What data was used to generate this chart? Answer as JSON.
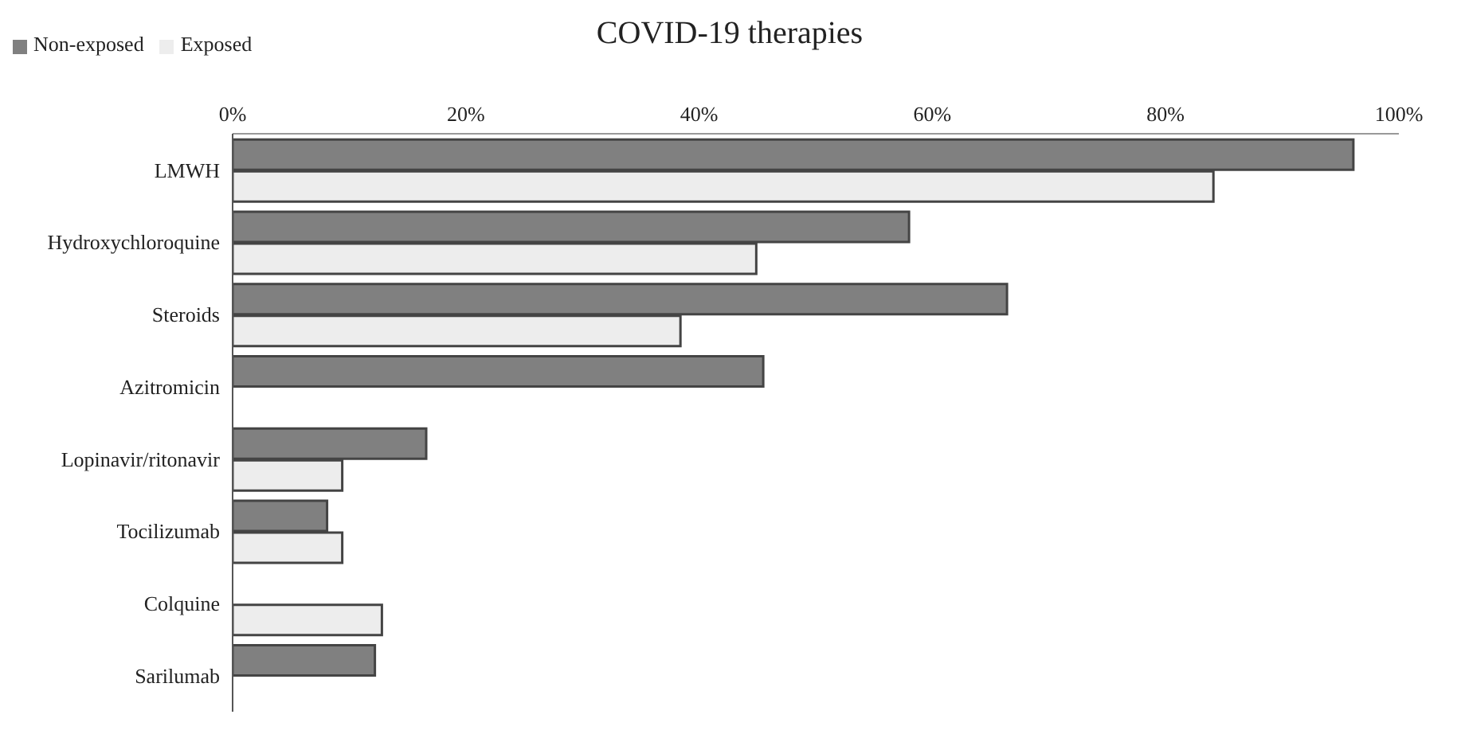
{
  "chart_data": {
    "type": "bar",
    "orientation": "horizontal",
    "title": "COVID-19 therapies",
    "categories": [
      "LMWH",
      "Hydroxychloroquine",
      "Steroids",
      "Azitromicin",
      "Lopinavir/ritonavir",
      "Tocilizumab",
      "Colquine",
      "Sarilumab"
    ],
    "series": [
      {
        "name": "Non-exposed",
        "color": "#808080",
        "values": [
          96.1,
          58.0,
          66.4,
          45.5,
          16.6,
          8.1,
          null,
          12.2
        ]
      },
      {
        "name": "Exposed",
        "color": "#ededed",
        "values": [
          84.1,
          44.9,
          38.4,
          null,
          9.4,
          9.4,
          12.8,
          null
        ]
      }
    ],
    "xlim": [
      0,
      100
    ],
    "xticks": [
      {
        "value": 0,
        "label": "0%"
      },
      {
        "value": 20,
        "label": "20%"
      },
      {
        "value": 40,
        "label": "40%"
      },
      {
        "value": 60,
        "label": "60%"
      },
      {
        "value": 80,
        "label": "80%"
      },
      {
        "value": 100,
        "label": "100%"
      }
    ],
    "legend": "top left"
  }
}
